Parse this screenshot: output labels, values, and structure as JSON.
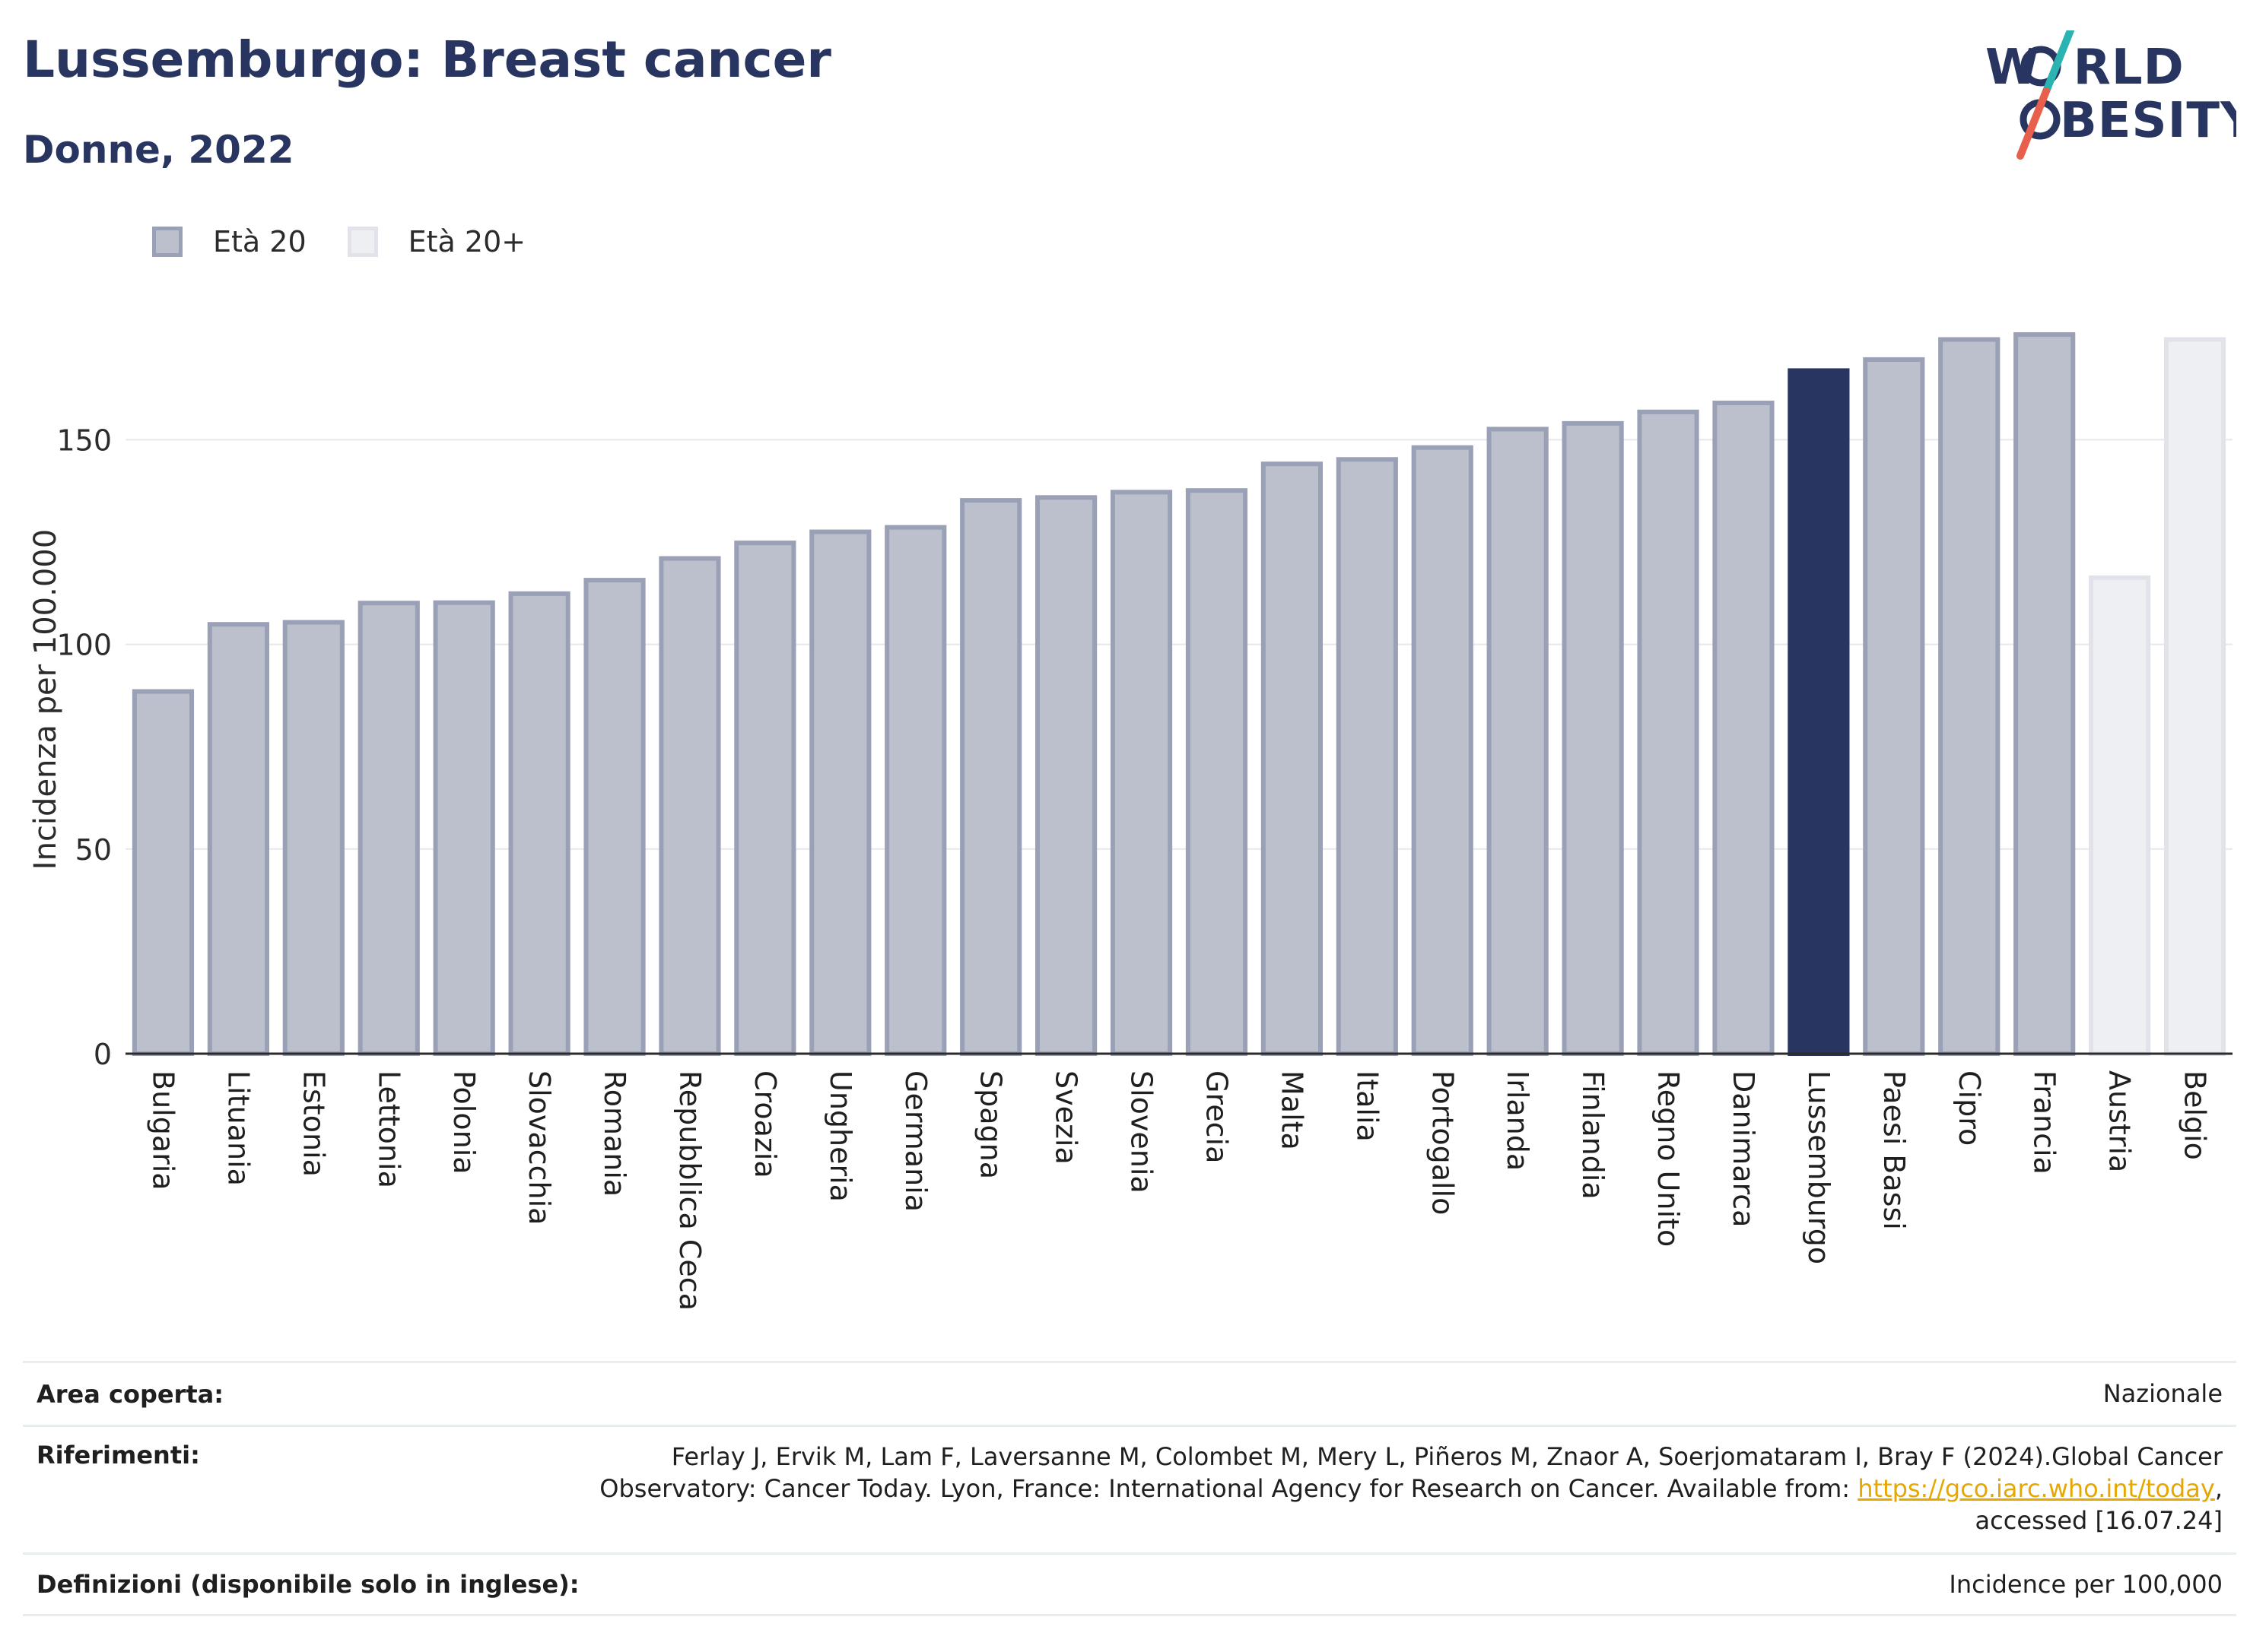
{
  "title": "Lussemburgo: Breast cancer",
  "subtitle": "Donne, 2022",
  "logo": {
    "line1": "W",
    "line1b": "RLD",
    "line2": "BESITY",
    "icon": "world-obesity-slash"
  },
  "legend": [
    {
      "label": "Età 20",
      "color": "#bcc0cd",
      "border": "#9aa0b6"
    },
    {
      "label": "Età 20+",
      "color": "#eeeff3",
      "border": "#e2e3ea"
    }
  ],
  "colors": {
    "default_bar": "#bcc0cd",
    "default_border": "#9aa0b6",
    "highlight": "#283561",
    "light_bar": "#eeeff3",
    "light_border": "#e2e3ea"
  },
  "chart_data": {
    "type": "bar",
    "ylabel": "Incidenza per 100.000",
    "ylim": [
      0,
      185
    ],
    "yticks": [
      0,
      50,
      100,
      150
    ],
    "grid": true,
    "legend_position": "top-left",
    "categories": [
      "Bulgaria",
      "Lituania",
      "Estonia",
      "Lettonia",
      "Polonia",
      "Slovacchia",
      "Romania",
      "Repubblica Ceca",
      "Croazia",
      "Ungheria",
      "Germania",
      "Spagna",
      "Svezia",
      "Slovenia",
      "Grecia",
      "Malta",
      "Italia",
      "Portogallo",
      "Irlanda",
      "Finlandia",
      "Regno Unito",
      "Danimarca",
      "Lussemburgo",
      "Paesi Bassi",
      "Cipro",
      "Francia",
      "Austria",
      "Belgio"
    ],
    "values": [
      88.5,
      104.9,
      105.4,
      110.1,
      110.2,
      112.4,
      115.7,
      121.0,
      124.8,
      127.5,
      128.6,
      135.2,
      135.9,
      137.2,
      137.6,
      144.1,
      145.2,
      148.1,
      152.6,
      154.0,
      156.8,
      159.0,
      166.9,
      169.6,
      174.5,
      175.7,
      116.3,
      174.5
    ],
    "group": [
      "Età 20",
      "Età 20",
      "Età 20",
      "Età 20",
      "Età 20",
      "Età 20",
      "Età 20",
      "Età 20",
      "Età 20",
      "Età 20",
      "Età 20",
      "Età 20",
      "Età 20",
      "Età 20",
      "Età 20",
      "Età 20",
      "Età 20",
      "Età 20",
      "Età 20",
      "Età 20",
      "Età 20",
      "Età 20",
      "Età 20",
      "Età 20",
      "Età 20",
      "Età 20",
      "Età 20+",
      "Età 20+"
    ],
    "highlight": "Lussemburgo"
  },
  "footer": {
    "area_label": "Area coperta:",
    "area_value": "Nazionale",
    "ref_label": "Riferimenti:",
    "ref_text_1": "Ferlay J, Ervik M, Lam F, Laversanne M, Colombet M, Mery L, Piñeros M, Znaor A, Soerjomataram I, Bray F (2024).Global Cancer",
    "ref_text_2": "Observatory: Cancer Today. Lyon, France: International Agency for Research on Cancer. Available from: ",
    "ref_link": "https://gco.iarc.who.int/today",
    "ref_text_3": ",",
    "ref_text_4": "accessed [16.07.24]",
    "def_label": "Definizioni (disponibile solo in inglese):",
    "def_value": "Incidence per 100,000"
  }
}
